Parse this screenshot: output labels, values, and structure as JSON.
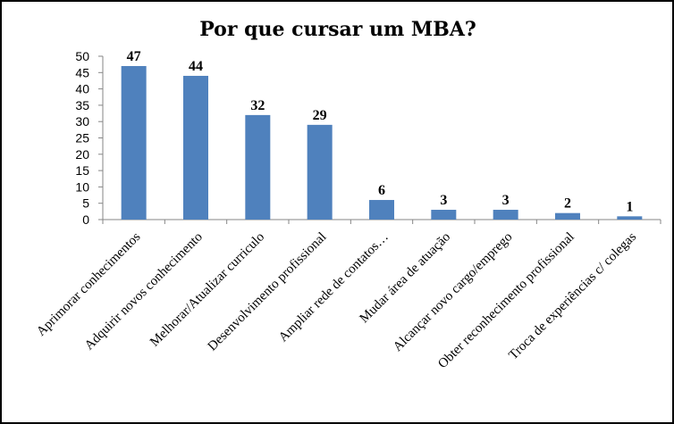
{
  "chart_data": {
    "type": "bar",
    "title": "Por que cursar um MBA?",
    "categories": [
      "Aprimorar conhecimentos",
      "Adquirir novos conhecimento",
      "Melhorar/Atualizar curriculo",
      "Desenvolvimento profissional",
      "Ampliar rede de contatos…",
      "Mudar área de atuação",
      "Alcançar novo cargo/emprego",
      "Obter reconhecimento profissional",
      "Troca de experiências c/ colegas"
    ],
    "values": [
      47,
      44,
      32,
      29,
      6,
      3,
      3,
      2,
      1
    ],
    "ylim": [
      0,
      50
    ],
    "yticks": [
      0,
      5,
      10,
      15,
      20,
      25,
      30,
      35,
      40,
      45,
      50
    ],
    "grid": false,
    "legend": "none",
    "bar_color": "#4F81BD"
  }
}
